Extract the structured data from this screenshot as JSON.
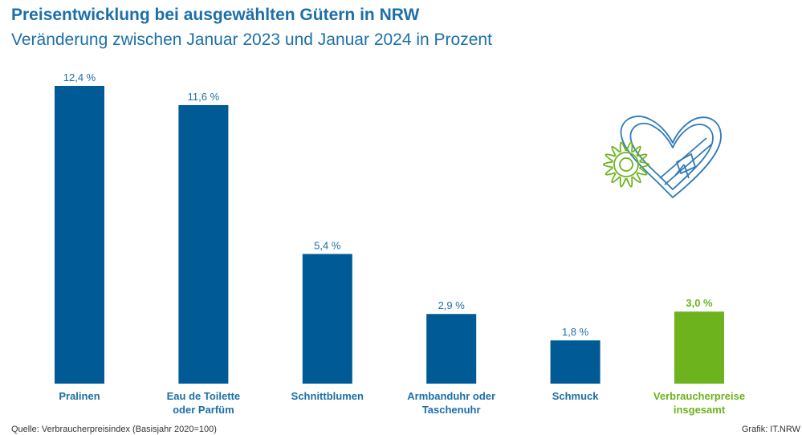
{
  "header": {
    "title": "Preisentwicklung bei ausgewählten Gütern in NRW",
    "subtitle": "Veränderung zwischen Januar 2023 und Januar 2024 in Prozent"
  },
  "footer": {
    "source": "Quelle: Verbraucherpreisindex (Basisjahr 2020=100)",
    "credit": "Grafik: IT.NRW"
  },
  "colors": {
    "bar": "#005a96",
    "highlight": "#6db31e",
    "title": "#1d6fa8",
    "label": "#1d6fa8",
    "illustration_blue": "#2f7ab8",
    "illustration_green": "#6db31e"
  },
  "chart_data": {
    "type": "bar",
    "categories": [
      [
        "Pralinen"
      ],
      [
        "Eau de Toilette",
        "oder Parfüm"
      ],
      [
        "Schnittblumen"
      ],
      [
        "Armbanduhr oder",
        "Taschenuhr"
      ],
      [
        "Schmuck"
      ],
      [
        "Verbraucherpreise",
        "insgesamt"
      ]
    ],
    "values": [
      12.4,
      11.6,
      5.4,
      2.9,
      1.8,
      3.0
    ],
    "value_labels": [
      "12,4 %",
      "11,6 %",
      "5,4 %",
      "2,9 %",
      "1,8 %",
      "3,0 %"
    ],
    "highlight_index": 5,
    "ylim": [
      0,
      12.4
    ],
    "grid": false,
    "legend": "none"
  },
  "illustration": {
    "icons": [
      "sunflower-icon",
      "heart-gift-box-icon"
    ]
  }
}
